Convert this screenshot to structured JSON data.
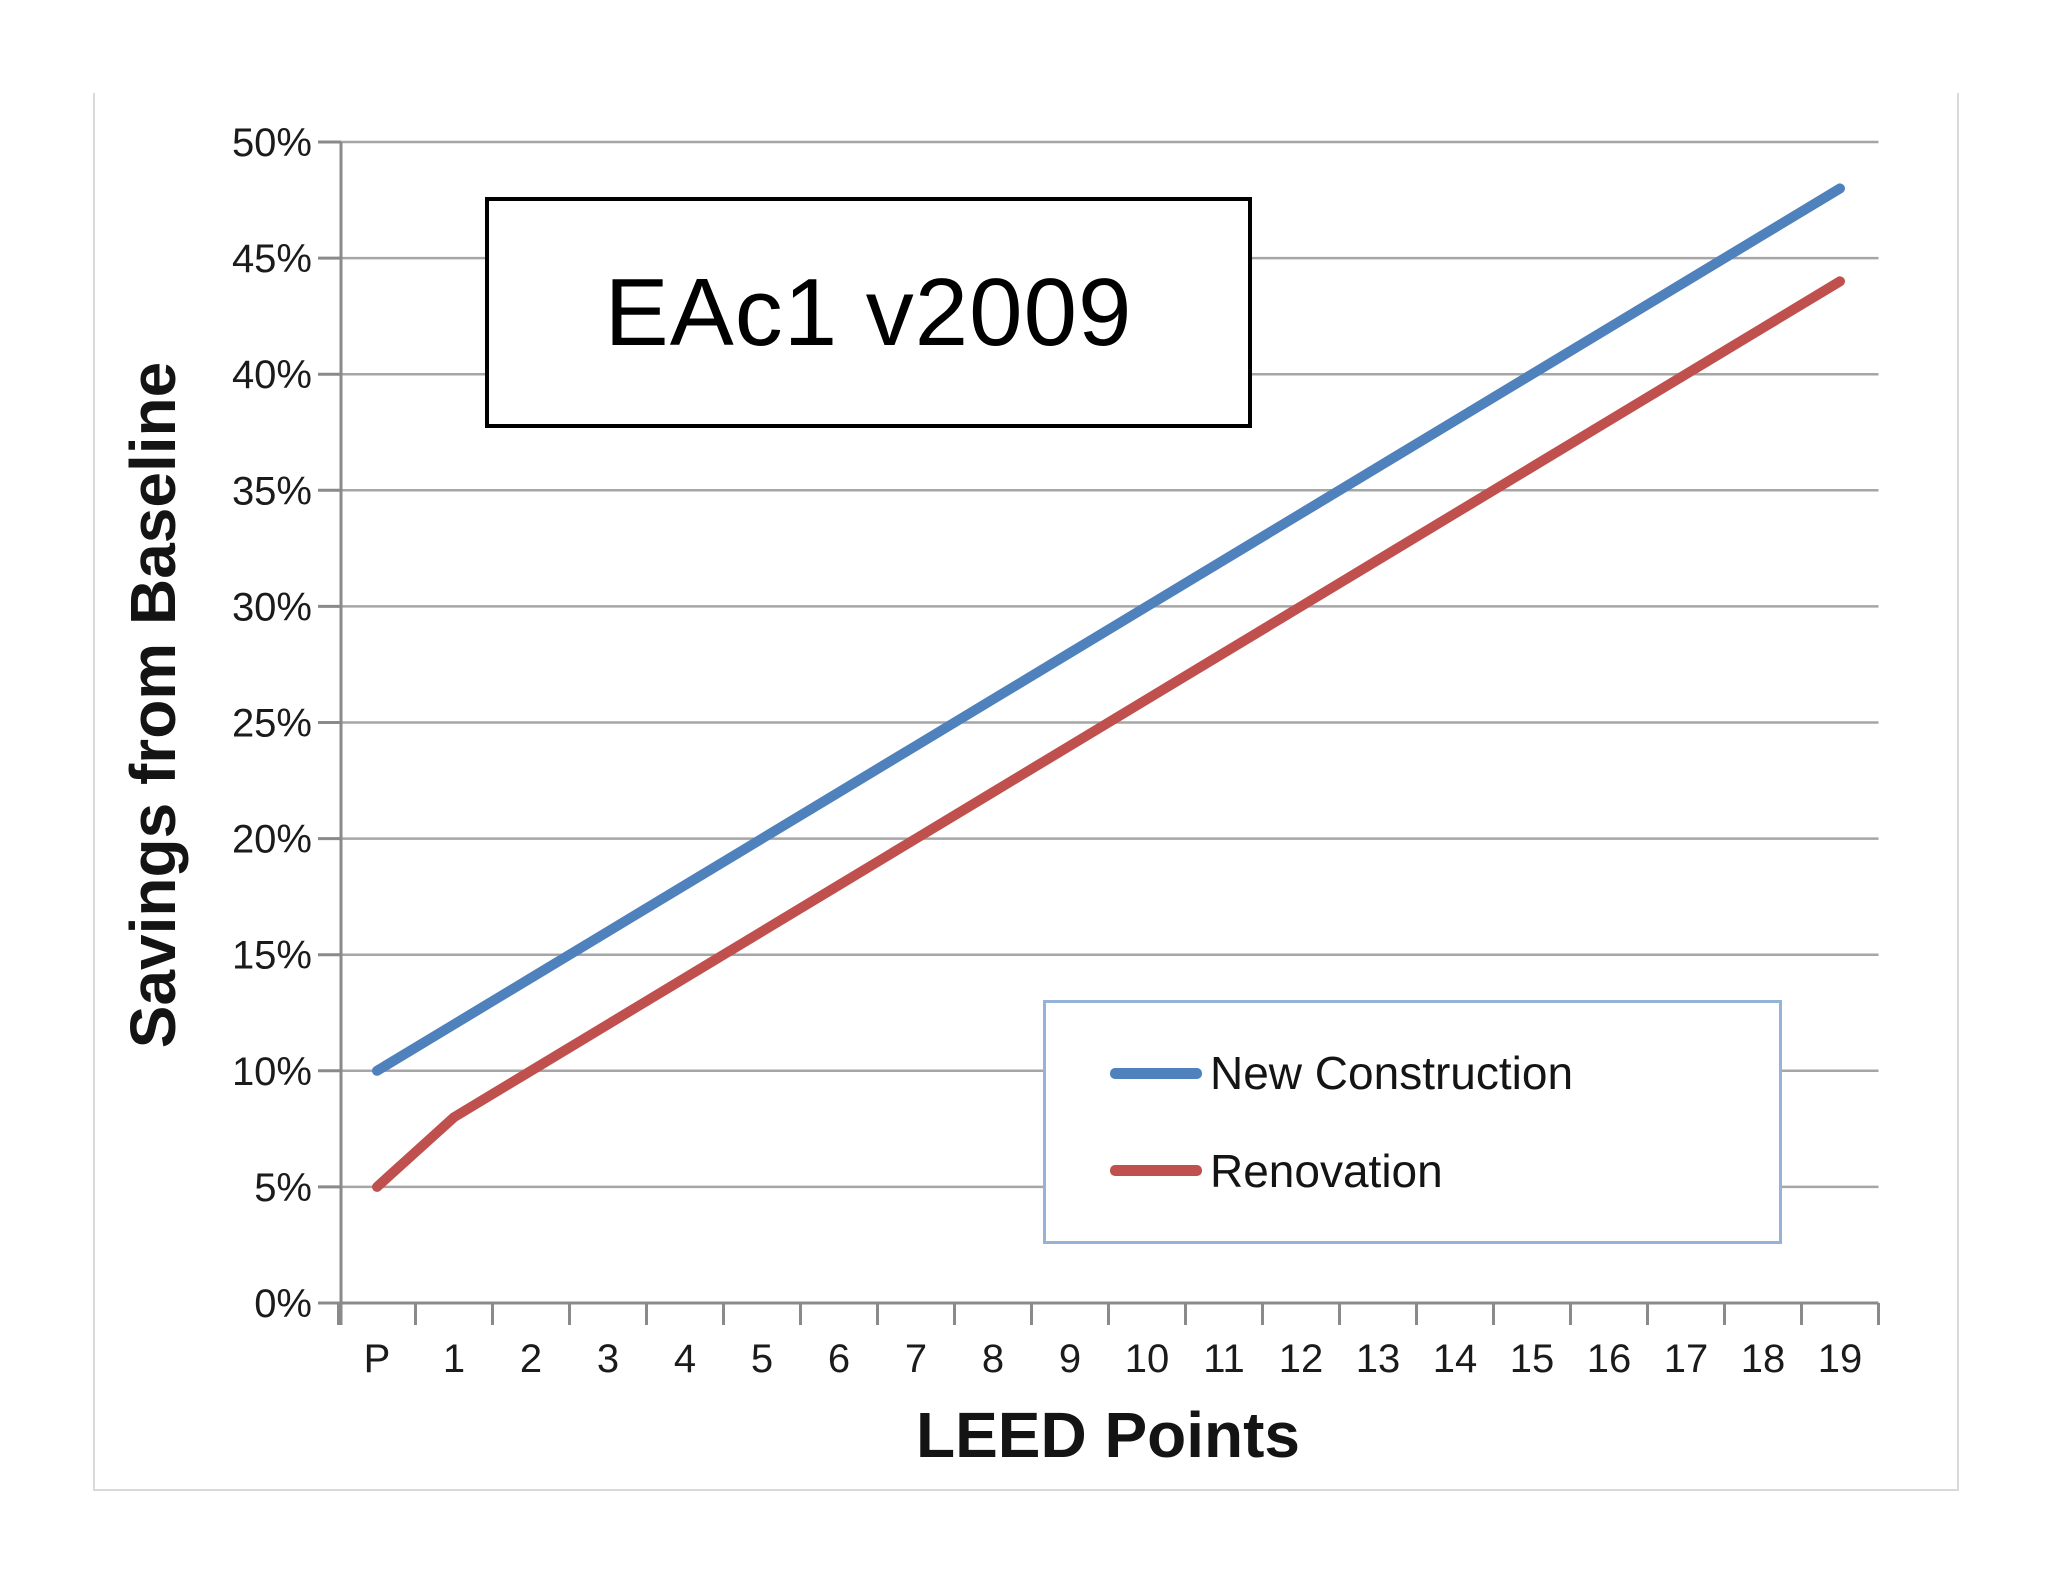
{
  "window": {
    "background": "#ffffff",
    "frame_border_color": "#d9d9d9"
  },
  "chart_data": {
    "type": "line",
    "title": "EAc1 v2009",
    "xlabel": "LEED Points",
    "ylabel": "Savings from Baseline",
    "categories": [
      "P",
      "1",
      "2",
      "3",
      "4",
      "5",
      "6",
      "7",
      "8",
      "9",
      "10",
      "11",
      "12",
      "13",
      "14",
      "15",
      "16",
      "17",
      "18",
      "19"
    ],
    "series": [
      {
        "name": "New Construction",
        "color": "#4F81BD",
        "values": [
          10,
          12,
          14,
          16,
          18,
          20,
          22,
          24,
          26,
          28,
          30,
          32,
          34,
          36,
          38,
          40,
          42,
          44,
          46,
          48
        ]
      },
      {
        "name": "Renovation",
        "color": "#C0504D",
        "values": [
          5,
          8,
          10,
          12,
          14,
          16,
          18,
          20,
          22,
          24,
          26,
          28,
          30,
          32,
          34,
          36,
          38,
          40,
          42,
          44
        ]
      }
    ],
    "ylim": [
      0,
      50
    ],
    "ytick_values": [
      0,
      5,
      10,
      15,
      20,
      25,
      30,
      35,
      40,
      45,
      50
    ],
    "ytick_labels": [
      "0%",
      "5%",
      "10%",
      "15%",
      "20%",
      "25%",
      "30%",
      "35%",
      "40%",
      "45%",
      "50%"
    ],
    "grid": "horizontal",
    "legend_position": "inside-bottom-right",
    "styles": {
      "gridline_color": "#a6a6a6",
      "axis_color": "#8a8a8a",
      "tick_color": "#8a8a8a",
      "tick_label_color": "#1b1b1b",
      "legend_border_color": "#95B3D7",
      "title_border_color": "#000000",
      "series_line_width": 10
    }
  }
}
